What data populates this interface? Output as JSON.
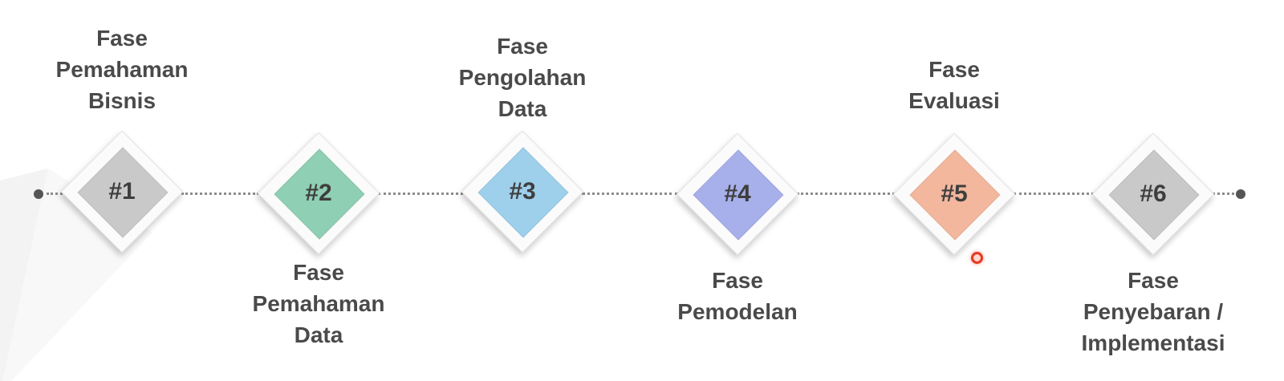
{
  "phases": [
    {
      "number": "#1",
      "label_lines": [
        "Fase",
        "Pemahaman",
        "Bisnis"
      ],
      "color": "#c9c9c9",
      "label_position": "top"
    },
    {
      "number": "#2",
      "label_lines": [
        "Fase",
        "Pemahaman",
        "Data"
      ],
      "color": "#8fcfb3",
      "label_position": "bottom"
    },
    {
      "number": "#3",
      "label_lines": [
        "Fase",
        "Pengolahan",
        "Data"
      ],
      "color": "#9ecfeb",
      "label_position": "top"
    },
    {
      "number": "#4",
      "label_lines": [
        "Fase",
        "Pemodelan"
      ],
      "color": "#a8b0eb",
      "label_position": "bottom"
    },
    {
      "number": "#5",
      "label_lines": [
        "Fase",
        "Evaluasi"
      ],
      "color": "#f2b79d",
      "label_position": "top"
    },
    {
      "number": "#6",
      "label_lines": [
        "Fase",
        "Penyebaran /",
        "Implementasi"
      ],
      "color": "#c9c9c9",
      "label_position": "bottom"
    }
  ]
}
